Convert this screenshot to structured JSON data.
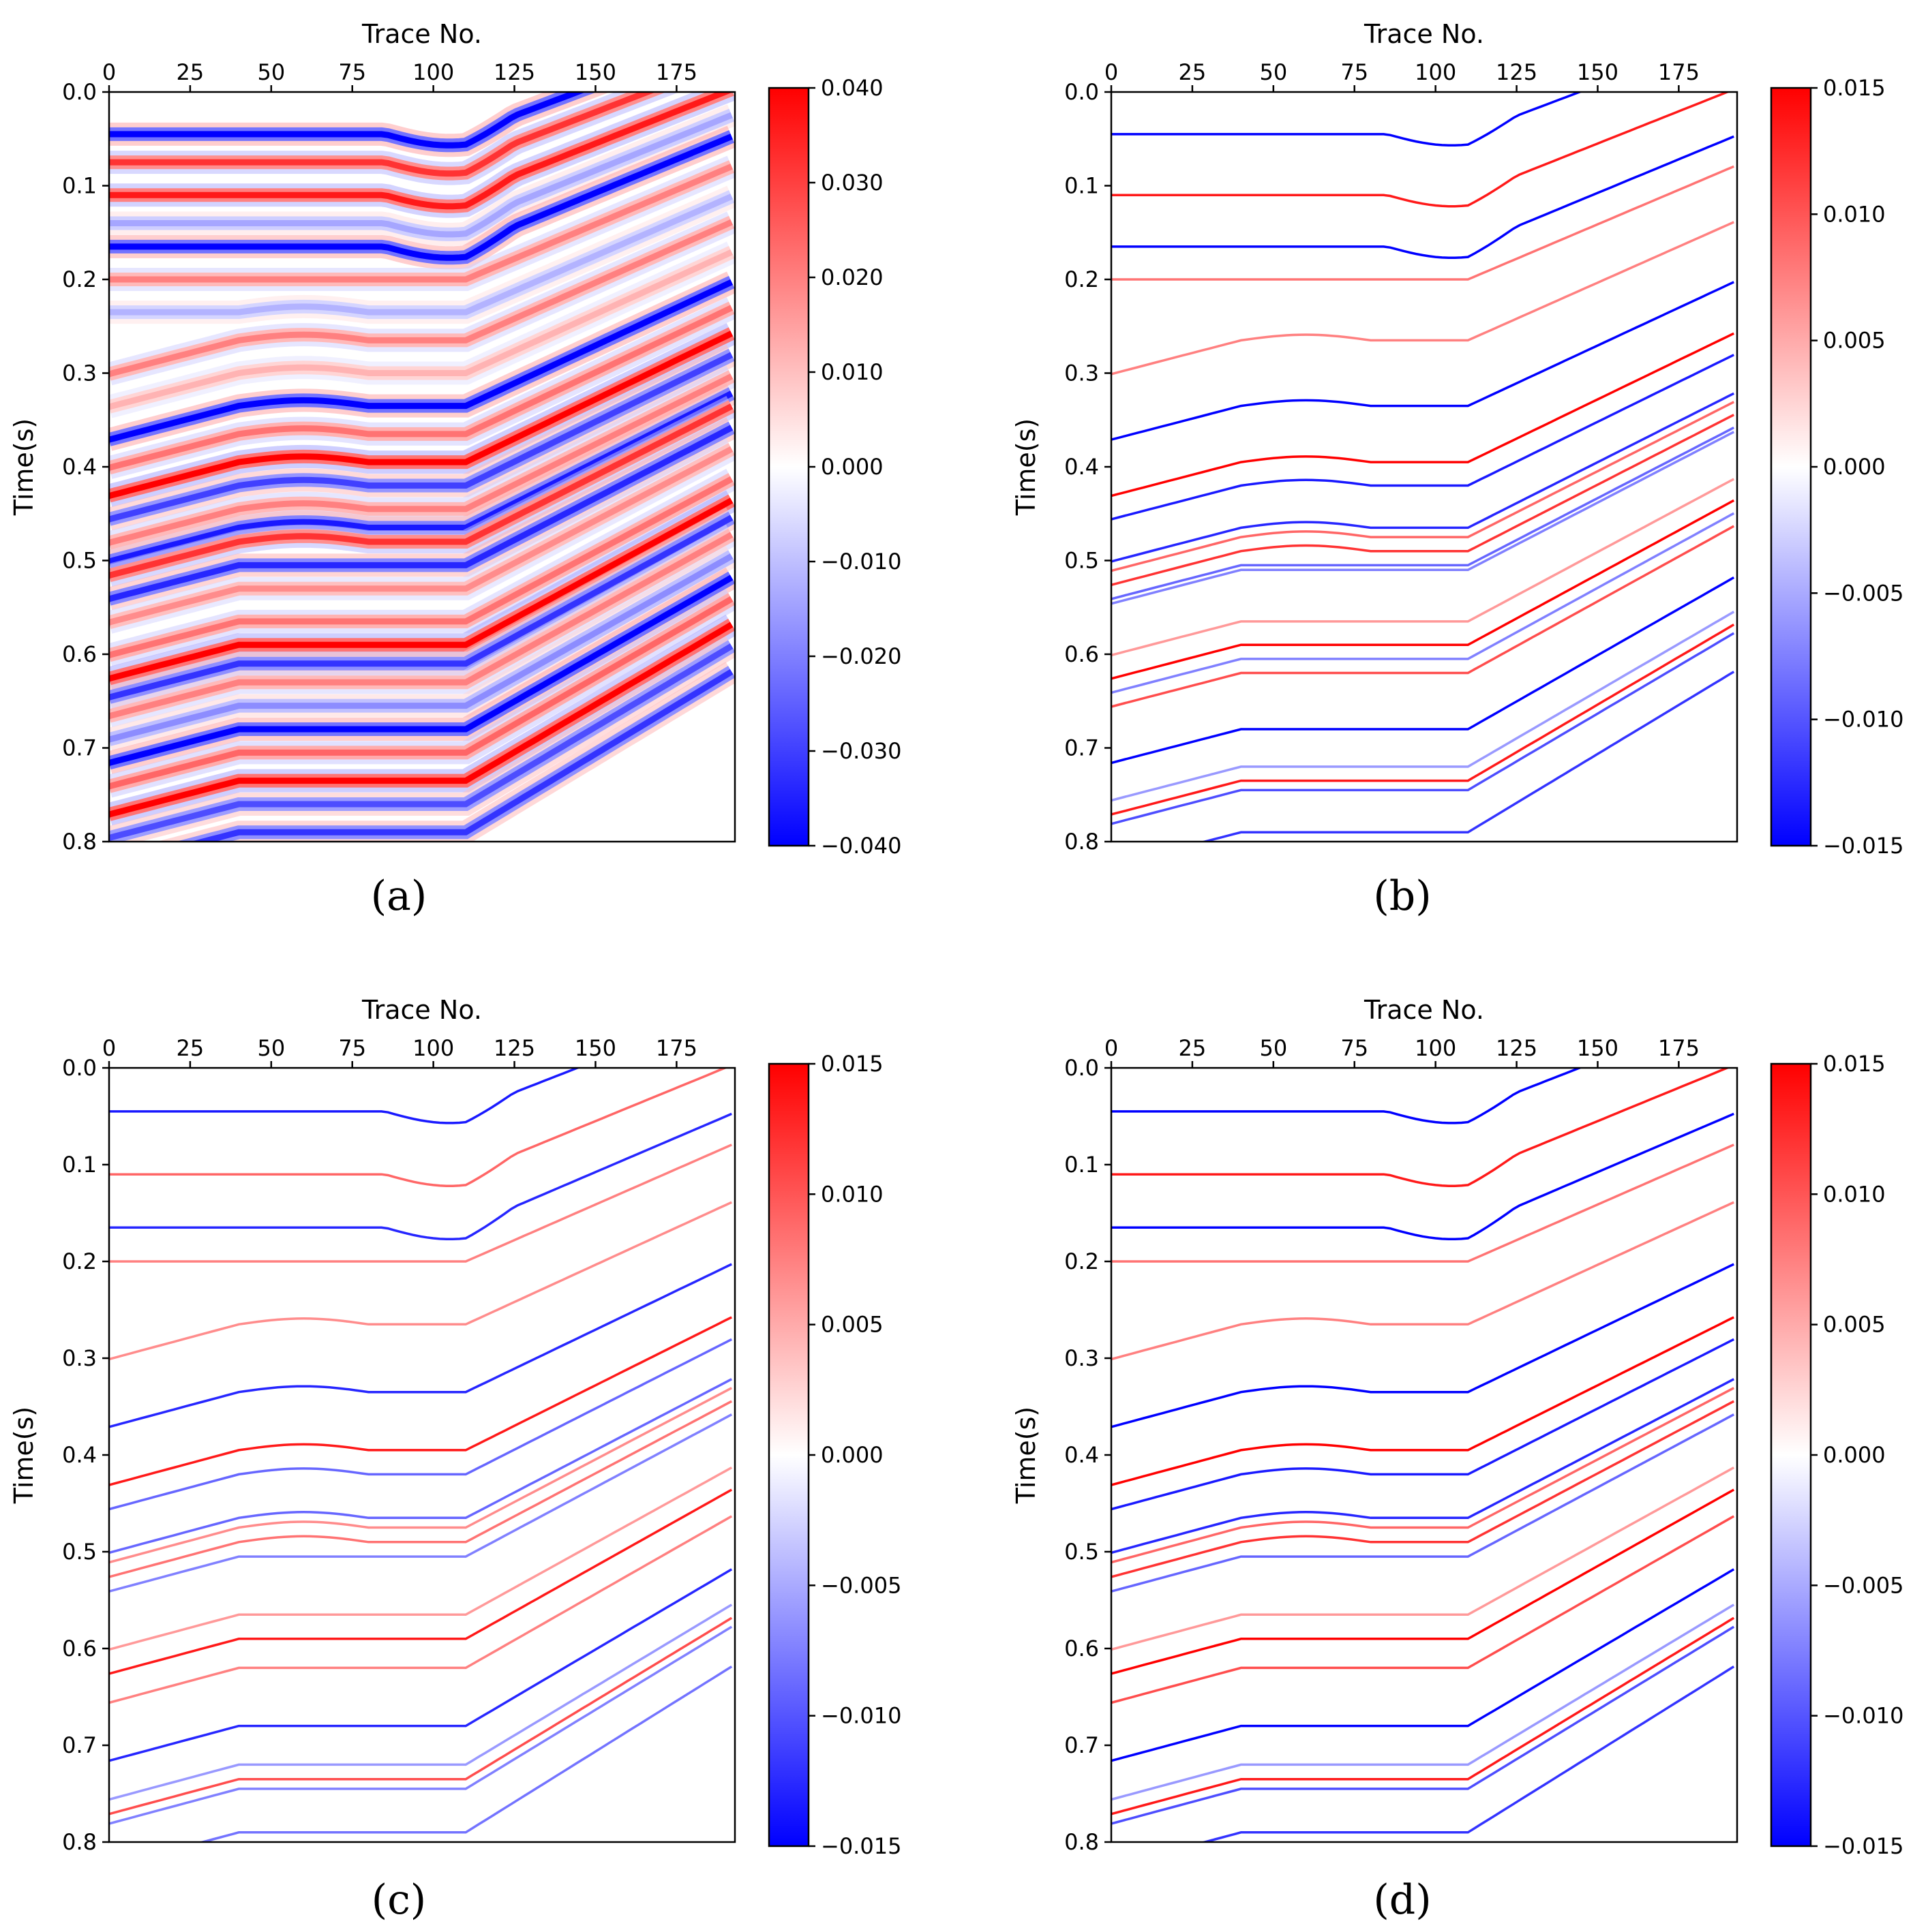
{
  "figure": {
    "panels": [
      {
        "id": "a",
        "caption": "(a)"
      },
      {
        "id": "b",
        "caption": "(b)"
      },
      {
        "id": "c",
        "caption": "(c)"
      },
      {
        "id": "d",
        "caption": "(d)"
      }
    ]
  },
  "chart_data": [
    {
      "type": "heatmap",
      "panel": "a",
      "caption": "(a)",
      "xlabel": "Trace No.",
      "ylabel": "Time(s)",
      "xlim": [
        0,
        193
      ],
      "ylim": [
        0.0,
        0.8
      ],
      "x_ticks": [
        "0",
        "25",
        "50",
        "75",
        "100",
        "125",
        "150",
        "175"
      ],
      "y_ticks": [
        "0.0",
        "0.1",
        "0.2",
        "0.3",
        "0.4",
        "0.5",
        "0.6",
        "0.7",
        "0.8"
      ],
      "colorbar": {
        "min": -0.04,
        "max": 0.04,
        "ticks": [
          "0.040",
          "0.030",
          "0.020",
          "0.010",
          "0.000",
          "−0.010",
          "−0.020",
          "−0.030",
          "−0.040"
        ],
        "colormap": "bwr"
      },
      "style": "dense",
      "horizons": [
        {
          "t0": 0.045,
          "pol": -1,
          "amp": 1.0
        },
        {
          "t0": 0.075,
          "pol": 1,
          "amp": 0.8
        },
        {
          "t0": 0.11,
          "pol": 1,
          "amp": 0.9
        },
        {
          "t0": 0.14,
          "pol": -1,
          "amp": 0.35
        },
        {
          "t0": 0.165,
          "pol": -1,
          "amp": 1.0
        },
        {
          "t0": 0.2,
          "pol": 1,
          "amp": 0.5
        },
        {
          "t0": 0.235,
          "pol": -1,
          "amp": 0.3
        },
        {
          "t0": 0.265,
          "pol": 1,
          "amp": 0.5
        },
        {
          "t0": 0.3,
          "pol": 1,
          "amp": 0.3
        },
        {
          "t0": 0.335,
          "pol": -1,
          "amp": 1.0
        },
        {
          "t0": 0.365,
          "pol": 1,
          "amp": 0.55
        },
        {
          "t0": 0.395,
          "pol": 1,
          "amp": 1.0
        },
        {
          "t0": 0.42,
          "pol": -1,
          "amp": 0.75
        },
        {
          "t0": 0.445,
          "pol": 1,
          "amp": 0.5
        },
        {
          "t0": 0.465,
          "pol": -1,
          "amp": 0.9
        },
        {
          "t0": 0.48,
          "pol": 1,
          "amp": 0.8
        },
        {
          "t0": 0.505,
          "pol": -1,
          "amp": 0.85
        },
        {
          "t0": 0.53,
          "pol": 1,
          "amp": 0.45
        },
        {
          "t0": 0.565,
          "pol": 1,
          "amp": 0.55
        },
        {
          "t0": 0.59,
          "pol": 1,
          "amp": 1.0
        },
        {
          "t0": 0.61,
          "pol": -1,
          "amp": 0.8
        },
        {
          "t0": 0.63,
          "pol": 1,
          "amp": 0.5
        },
        {
          "t0": 0.655,
          "pol": -1,
          "amp": 0.45
        },
        {
          "t0": 0.68,
          "pol": -1,
          "amp": 1.0
        },
        {
          "t0": 0.705,
          "pol": 1,
          "amp": 0.6
        },
        {
          "t0": 0.735,
          "pol": 1,
          "amp": 1.0
        },
        {
          "t0": 0.76,
          "pol": -1,
          "amp": 0.7
        },
        {
          "t0": 0.79,
          "pol": -1,
          "amp": 0.8
        }
      ]
    },
    {
      "type": "heatmap",
      "panel": "b",
      "caption": "(b)",
      "xlabel": "Trace No.",
      "ylabel": "Time(s)",
      "xlim": [
        0,
        193
      ],
      "ylim": [
        0.0,
        0.8
      ],
      "x_ticks": [
        "0",
        "25",
        "50",
        "75",
        "100",
        "125",
        "150",
        "175"
      ],
      "y_ticks": [
        "0.0",
        "0.1",
        "0.2",
        "0.3",
        "0.4",
        "0.5",
        "0.6",
        "0.7",
        "0.8"
      ],
      "colorbar": {
        "min": -0.015,
        "max": 0.015,
        "ticks": [
          "0.015",
          "0.010",
          "0.005",
          "0.000",
          "−0.005",
          "−0.010",
          "−0.015"
        ],
        "colormap": "bwr"
      },
      "style": "sparse",
      "horizons": [
        {
          "t0": 0.045,
          "pol": -1,
          "amp": 1.0
        },
        {
          "t0": 0.11,
          "pol": 1,
          "amp": 0.9
        },
        {
          "t0": 0.165,
          "pol": -1,
          "amp": 1.0
        },
        {
          "t0": 0.2,
          "pol": 1,
          "amp": 0.55
        },
        {
          "t0": 0.265,
          "pol": 1,
          "amp": 0.5
        },
        {
          "t0": 0.335,
          "pol": -1,
          "amp": 1.0
        },
        {
          "t0": 0.395,
          "pol": 1,
          "amp": 1.0
        },
        {
          "t0": 0.42,
          "pol": -1,
          "amp": 0.9
        },
        {
          "t0": 0.465,
          "pol": -1,
          "amp": 0.85
        },
        {
          "t0": 0.475,
          "pol": 1,
          "amp": 0.6
        },
        {
          "t0": 0.49,
          "pol": 1,
          "amp": 0.8
        },
        {
          "t0": 0.505,
          "pol": -1,
          "amp": 0.6
        },
        {
          "t0": 0.51,
          "pol": -1,
          "amp": 0.5
        },
        {
          "t0": 0.565,
          "pol": 1,
          "amp": 0.4
        },
        {
          "t0": 0.59,
          "pol": 1,
          "amp": 1.0
        },
        {
          "t0": 0.605,
          "pol": -1,
          "amp": 0.5
        },
        {
          "t0": 0.62,
          "pol": 1,
          "amp": 0.7
        },
        {
          "t0": 0.68,
          "pol": -1,
          "amp": 1.0
        },
        {
          "t0": 0.72,
          "pol": -1,
          "amp": 0.4
        },
        {
          "t0": 0.735,
          "pol": 1,
          "amp": 0.9
        },
        {
          "t0": 0.745,
          "pol": -1,
          "amp": 0.7
        },
        {
          "t0": 0.79,
          "pol": -1,
          "amp": 0.8
        }
      ]
    },
    {
      "type": "heatmap",
      "panel": "c",
      "caption": "(c)",
      "xlabel": "Trace No.",
      "ylabel": "Time(s)",
      "xlim": [
        0,
        193
      ],
      "ylim": [
        0.0,
        0.8
      ],
      "x_ticks": [
        "0",
        "25",
        "50",
        "75",
        "100",
        "125",
        "150",
        "175"
      ],
      "y_ticks": [
        "0.0",
        "0.1",
        "0.2",
        "0.3",
        "0.4",
        "0.5",
        "0.6",
        "0.7",
        "0.8"
      ],
      "colorbar": {
        "min": -0.015,
        "max": 0.015,
        "ticks": [
          "0.015",
          "0.010",
          "0.005",
          "0.000",
          "−0.005",
          "−0.010",
          "−0.015"
        ],
        "colormap": "bwr"
      },
      "style": "sparse",
      "horizons": [
        {
          "t0": 0.045,
          "pol": -1,
          "amp": 0.9
        },
        {
          "t0": 0.11,
          "pol": 1,
          "amp": 0.6
        },
        {
          "t0": 0.165,
          "pol": -1,
          "amp": 0.85
        },
        {
          "t0": 0.2,
          "pol": 1,
          "amp": 0.5
        },
        {
          "t0": 0.265,
          "pol": 1,
          "amp": 0.45
        },
        {
          "t0": 0.335,
          "pol": -1,
          "amp": 0.85
        },
        {
          "t0": 0.395,
          "pol": 1,
          "amp": 0.9
        },
        {
          "t0": 0.42,
          "pol": -1,
          "amp": 0.6
        },
        {
          "t0": 0.465,
          "pol": -1,
          "amp": 0.6
        },
        {
          "t0": 0.475,
          "pol": 1,
          "amp": 0.45
        },
        {
          "t0": 0.49,
          "pol": 1,
          "amp": 0.55
        },
        {
          "t0": 0.505,
          "pol": -1,
          "amp": 0.5
        },
        {
          "t0": 0.565,
          "pol": 1,
          "amp": 0.4
        },
        {
          "t0": 0.59,
          "pol": 1,
          "amp": 0.9
        },
        {
          "t0": 0.62,
          "pol": 1,
          "amp": 0.5
        },
        {
          "t0": 0.68,
          "pol": -1,
          "amp": 0.85
        },
        {
          "t0": 0.72,
          "pol": -1,
          "amp": 0.4
        },
        {
          "t0": 0.735,
          "pol": 1,
          "amp": 0.7
        },
        {
          "t0": 0.745,
          "pol": -1,
          "amp": 0.5
        },
        {
          "t0": 0.79,
          "pol": -1,
          "amp": 0.55
        }
      ]
    },
    {
      "type": "heatmap",
      "panel": "d",
      "caption": "(d)",
      "xlabel": "Trace No.",
      "ylabel": "Time(s)",
      "xlim": [
        0,
        193
      ],
      "ylim": [
        0.0,
        0.8
      ],
      "x_ticks": [
        "0",
        "25",
        "50",
        "75",
        "100",
        "125",
        "150",
        "175"
      ],
      "y_ticks": [
        "0.0",
        "0.1",
        "0.2",
        "0.3",
        "0.4",
        "0.5",
        "0.6",
        "0.7",
        "0.8"
      ],
      "colorbar": {
        "min": -0.015,
        "max": 0.015,
        "ticks": [
          "0.015",
          "0.010",
          "0.005",
          "0.000",
          "−0.005",
          "−0.010",
          "−0.015"
        ],
        "colormap": "bwr"
      },
      "style": "sparse",
      "horizons": [
        {
          "t0": 0.045,
          "pol": -1,
          "amp": 1.0
        },
        {
          "t0": 0.11,
          "pol": 1,
          "amp": 0.9
        },
        {
          "t0": 0.165,
          "pol": -1,
          "amp": 1.0
        },
        {
          "t0": 0.2,
          "pol": 1,
          "amp": 0.55
        },
        {
          "t0": 0.265,
          "pol": 1,
          "amp": 0.5
        },
        {
          "t0": 0.335,
          "pol": -1,
          "amp": 1.0
        },
        {
          "t0": 0.395,
          "pol": 1,
          "amp": 1.0
        },
        {
          "t0": 0.42,
          "pol": -1,
          "amp": 0.9
        },
        {
          "t0": 0.465,
          "pol": -1,
          "amp": 0.85
        },
        {
          "t0": 0.475,
          "pol": 1,
          "amp": 0.6
        },
        {
          "t0": 0.49,
          "pol": 1,
          "amp": 0.8
        },
        {
          "t0": 0.505,
          "pol": -1,
          "amp": 0.6
        },
        {
          "t0": 0.565,
          "pol": 1,
          "amp": 0.4
        },
        {
          "t0": 0.59,
          "pol": 1,
          "amp": 1.0
        },
        {
          "t0": 0.62,
          "pol": 1,
          "amp": 0.7
        },
        {
          "t0": 0.68,
          "pol": -1,
          "amp": 1.0
        },
        {
          "t0": 0.72,
          "pol": -1,
          "amp": 0.4
        },
        {
          "t0": 0.735,
          "pol": 1,
          "amp": 0.9
        },
        {
          "t0": 0.745,
          "pol": -1,
          "amp": 0.7
        },
        {
          "t0": 0.79,
          "pol": -1,
          "amp": 0.8
        }
      ]
    }
  ]
}
